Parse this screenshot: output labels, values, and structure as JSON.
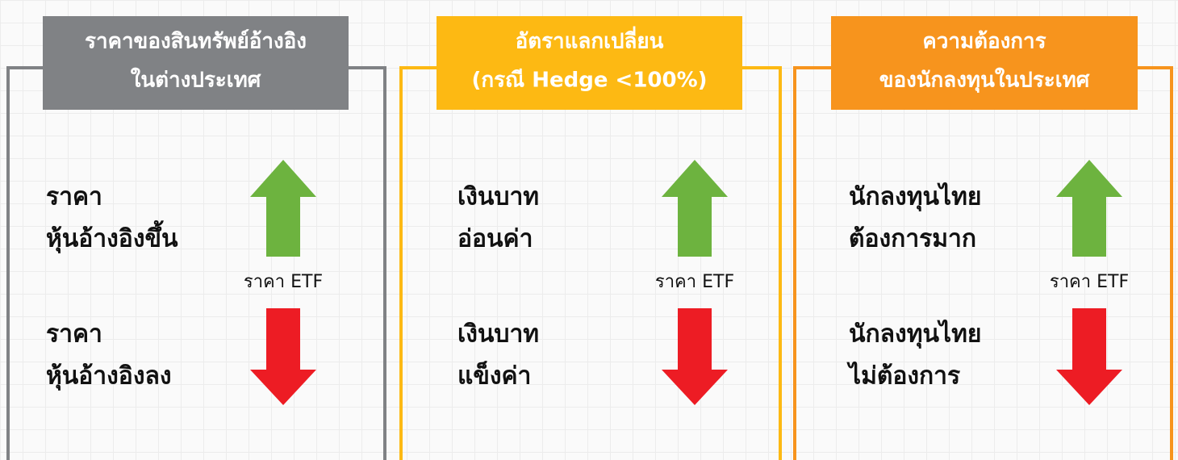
{
  "panels": [
    {
      "color": "#808285",
      "title": [
        "ราคาของสินทรัพย์อ้างอิง",
        "ในต่างประเทศ"
      ],
      "up": [
        "ราคา",
        "หุ้นอ้างอิงขึ้น"
      ],
      "center_label": "ราคา ETF",
      "down": [
        "ราคา",
        "หุ้นอ้างอิงลง"
      ]
    },
    {
      "color": "#fdb913",
      "title": [
        "อัตราแลกเปลี่ยน",
        "(กรณี Hedge <100%)"
      ],
      "up": [
        "เงินบาท",
        "อ่อนค่า"
      ],
      "center_label": "ราคา ETF",
      "down": [
        "เงินบาท",
        "แข็งค่า"
      ]
    },
    {
      "color": "#f7941d",
      "title": [
        "ความต้องการ",
        "ของนักลงทุนในประเทศ"
      ],
      "up": [
        "นักลงทุนไทย",
        "ต้องการมาก"
      ],
      "center_label": "ราคา ETF",
      "down": [
        "นักลงทุนไทย",
        "ไม่ต้องการ"
      ]
    }
  ]
}
